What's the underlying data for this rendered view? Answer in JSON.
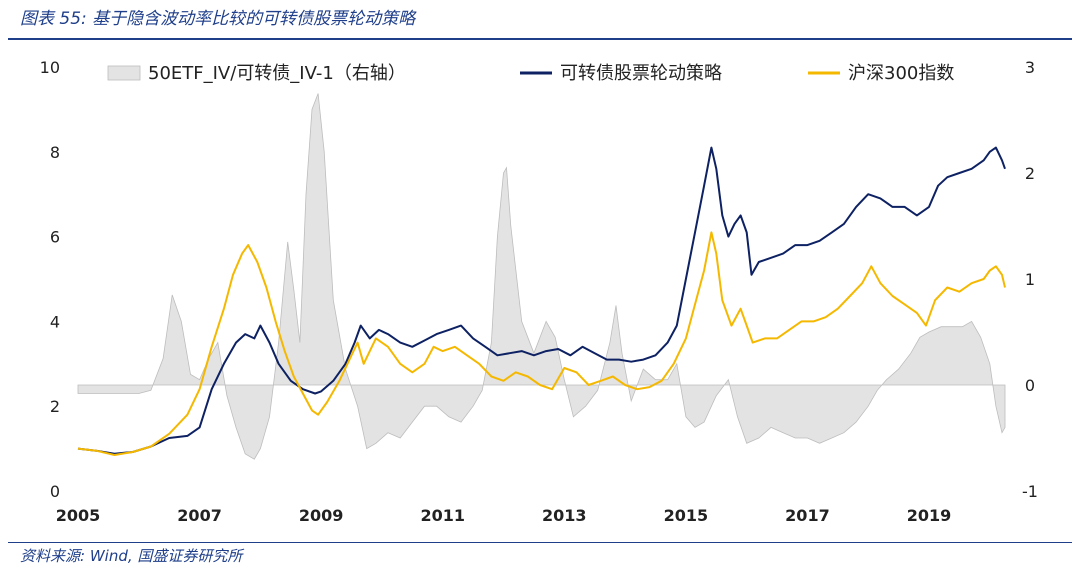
{
  "figure": {
    "title": "图表 55:  基于隐含波动率比较的可转债股票轮动策略",
    "source": "资料来源:  Wind, 国盛证券研究所"
  },
  "colors": {
    "brand": "#1f3f8a",
    "strategy": "#0d2163",
    "hs300": "#f5b800",
    "iv_area_fill": "#e3e3e3",
    "iv_area_stroke": "#bdbdbd"
  },
  "chart_data": {
    "type": "line",
    "x_range": [
      2005.0,
      2020.25
    ],
    "x_ticks": [
      {
        "value": 2005,
        "label": "2005"
      },
      {
        "value": 2007,
        "label": "2007"
      },
      {
        "value": 2009,
        "label": "2009"
      },
      {
        "value": 2011,
        "label": "2011"
      },
      {
        "value": 2013,
        "label": "2013"
      },
      {
        "value": 2015,
        "label": "2015"
      },
      {
        "value": 2017,
        "label": "2017"
      },
      {
        "value": 2019,
        "label": "2019"
      }
    ],
    "y_left": {
      "range": [
        0,
        10
      ],
      "ticks": [
        "0",
        "2",
        "4",
        "6",
        "8",
        "10"
      ]
    },
    "y_right": {
      "range": [
        -1,
        3
      ],
      "ticks": [
        "-1",
        "0",
        "1",
        "2",
        "3"
      ]
    },
    "legend_position": "top",
    "series": [
      {
        "name": "50ETF_IV/可转债_IV-1（右轴）",
        "type": "area",
        "axis": "right",
        "color": "#e3e3e3",
        "points": [
          [
            2005.0,
            -0.08
          ],
          [
            2005.5,
            -0.08
          ],
          [
            2006.0,
            -0.08
          ],
          [
            2006.2,
            -0.05
          ],
          [
            2006.4,
            0.25
          ],
          [
            2006.55,
            0.85
          ],
          [
            2006.7,
            0.6
          ],
          [
            2006.85,
            0.1
          ],
          [
            2007.0,
            0.05
          ],
          [
            2007.15,
            0.25
          ],
          [
            2007.3,
            0.4
          ],
          [
            2007.45,
            -0.1
          ],
          [
            2007.6,
            -0.4
          ],
          [
            2007.75,
            -0.65
          ],
          [
            2007.9,
            -0.7
          ],
          [
            2008.0,
            -0.6
          ],
          [
            2008.15,
            -0.3
          ],
          [
            2008.3,
            0.4
          ],
          [
            2008.45,
            1.35
          ],
          [
            2008.55,
            0.9
          ],
          [
            2008.65,
            0.4
          ],
          [
            2008.75,
            1.8
          ],
          [
            2008.85,
            2.6
          ],
          [
            2008.95,
            2.75
          ],
          [
            2009.05,
            2.2
          ],
          [
            2009.2,
            0.8
          ],
          [
            2009.4,
            0.15
          ],
          [
            2009.6,
            -0.2
          ],
          [
            2009.75,
            -0.6
          ],
          [
            2009.9,
            -0.55
          ],
          [
            2010.1,
            -0.45
          ],
          [
            2010.3,
            -0.5
          ],
          [
            2010.5,
            -0.35
          ],
          [
            2010.7,
            -0.2
          ],
          [
            2010.9,
            -0.2
          ],
          [
            2011.1,
            -0.3
          ],
          [
            2011.3,
            -0.35
          ],
          [
            2011.5,
            -0.2
          ],
          [
            2011.65,
            -0.05
          ],
          [
            2011.8,
            0.4
          ],
          [
            2011.9,
            1.4
          ],
          [
            2012.0,
            2.0
          ],
          [
            2012.05,
            2.05
          ],
          [
            2012.12,
            1.5
          ],
          [
            2012.3,
            0.6
          ],
          [
            2012.5,
            0.3
          ],
          [
            2012.7,
            0.6
          ],
          [
            2012.85,
            0.45
          ],
          [
            2013.0,
            0.05
          ],
          [
            2013.15,
            -0.3
          ],
          [
            2013.35,
            -0.2
          ],
          [
            2013.55,
            -0.05
          ],
          [
            2013.75,
            0.4
          ],
          [
            2013.85,
            0.75
          ],
          [
            2013.95,
            0.3
          ],
          [
            2014.1,
            -0.15
          ],
          [
            2014.3,
            0.15
          ],
          [
            2014.5,
            0.05
          ],
          [
            2014.7,
            0.05
          ],
          [
            2014.85,
            0.2
          ],
          [
            2015.0,
            -0.3
          ],
          [
            2015.15,
            -0.4
          ],
          [
            2015.3,
            -0.35
          ],
          [
            2015.5,
            -0.1
          ],
          [
            2015.7,
            0.05
          ],
          [
            2015.85,
            -0.3
          ],
          [
            2016.0,
            -0.55
          ],
          [
            2016.2,
            -0.5
          ],
          [
            2016.4,
            -0.4
          ],
          [
            2016.6,
            -0.45
          ],
          [
            2016.8,
            -0.5
          ],
          [
            2017.0,
            -0.5
          ],
          [
            2017.2,
            -0.55
          ],
          [
            2017.4,
            -0.5
          ],
          [
            2017.6,
            -0.45
          ],
          [
            2017.8,
            -0.35
          ],
          [
            2018.0,
            -0.2
          ],
          [
            2018.15,
            -0.05
          ],
          [
            2018.3,
            0.05
          ],
          [
            2018.5,
            0.15
          ],
          [
            2018.7,
            0.3
          ],
          [
            2018.85,
            0.45
          ],
          [
            2019.0,
            0.5
          ],
          [
            2019.2,
            0.55
          ],
          [
            2019.4,
            0.55
          ],
          [
            2019.55,
            0.55
          ],
          [
            2019.7,
            0.6
          ],
          [
            2019.85,
            0.45
          ],
          [
            2020.0,
            0.2
          ],
          [
            2020.1,
            -0.2
          ],
          [
            2020.2,
            -0.45
          ],
          [
            2020.25,
            -0.4
          ]
        ]
      },
      {
        "name": "可转债股票轮动策略",
        "type": "line",
        "axis": "left",
        "color": "#0d2163",
        "points": [
          [
            2005.0,
            1.0
          ],
          [
            2005.3,
            0.95
          ],
          [
            2005.6,
            0.88
          ],
          [
            2005.9,
            0.92
          ],
          [
            2006.2,
            1.05
          ],
          [
            2006.5,
            1.25
          ],
          [
            2006.8,
            1.3
          ],
          [
            2007.0,
            1.5
          ],
          [
            2007.2,
            2.4
          ],
          [
            2007.4,
            3.0
          ],
          [
            2007.6,
            3.5
          ],
          [
            2007.75,
            3.7
          ],
          [
            2007.9,
            3.6
          ],
          [
            2008.0,
            3.9
          ],
          [
            2008.15,
            3.5
          ],
          [
            2008.3,
            3.0
          ],
          [
            2008.5,
            2.6
          ],
          [
            2008.7,
            2.4
          ],
          [
            2008.9,
            2.3
          ],
          [
            2009.0,
            2.35
          ],
          [
            2009.2,
            2.6
          ],
          [
            2009.4,
            3.0
          ],
          [
            2009.55,
            3.5
          ],
          [
            2009.65,
            3.9
          ],
          [
            2009.8,
            3.6
          ],
          [
            2009.95,
            3.8
          ],
          [
            2010.1,
            3.7
          ],
          [
            2010.3,
            3.5
          ],
          [
            2010.5,
            3.4
          ],
          [
            2010.7,
            3.55
          ],
          [
            2010.9,
            3.7
          ],
          [
            2011.1,
            3.8
          ],
          [
            2011.3,
            3.9
          ],
          [
            2011.5,
            3.6
          ],
          [
            2011.7,
            3.4
          ],
          [
            2011.9,
            3.2
          ],
          [
            2012.1,
            3.25
          ],
          [
            2012.3,
            3.3
          ],
          [
            2012.5,
            3.2
          ],
          [
            2012.7,
            3.3
          ],
          [
            2012.9,
            3.35
          ],
          [
            2013.1,
            3.2
          ],
          [
            2013.3,
            3.4
          ],
          [
            2013.5,
            3.25
          ],
          [
            2013.7,
            3.1
          ],
          [
            2013.9,
            3.1
          ],
          [
            2014.1,
            3.05
          ],
          [
            2014.3,
            3.1
          ],
          [
            2014.5,
            3.2
          ],
          [
            2014.7,
            3.5
          ],
          [
            2014.85,
            3.9
          ],
          [
            2015.0,
            5.0
          ],
          [
            2015.15,
            6.1
          ],
          [
            2015.3,
            7.2
          ],
          [
            2015.42,
            8.1
          ],
          [
            2015.5,
            7.6
          ],
          [
            2015.6,
            6.5
          ],
          [
            2015.7,
            6.0
          ],
          [
            2015.8,
            6.3
          ],
          [
            2015.9,
            6.5
          ],
          [
            2016.0,
            6.1
          ],
          [
            2016.08,
            5.1
          ],
          [
            2016.2,
            5.4
          ],
          [
            2016.4,
            5.5
          ],
          [
            2016.6,
            5.6
          ],
          [
            2016.8,
            5.8
          ],
          [
            2017.0,
            5.8
          ],
          [
            2017.2,
            5.9
          ],
          [
            2017.4,
            6.1
          ],
          [
            2017.6,
            6.3
          ],
          [
            2017.8,
            6.7
          ],
          [
            2018.0,
            7.0
          ],
          [
            2018.2,
            6.9
          ],
          [
            2018.4,
            6.7
          ],
          [
            2018.6,
            6.7
          ],
          [
            2018.8,
            6.5
          ],
          [
            2019.0,
            6.7
          ],
          [
            2019.15,
            7.2
          ],
          [
            2019.3,
            7.4
          ],
          [
            2019.5,
            7.5
          ],
          [
            2019.7,
            7.6
          ],
          [
            2019.9,
            7.8
          ],
          [
            2020.0,
            8.0
          ],
          [
            2020.1,
            8.1
          ],
          [
            2020.2,
            7.8
          ],
          [
            2020.25,
            7.6
          ]
        ]
      },
      {
        "name": "沪深300指数",
        "type": "line",
        "axis": "left",
        "color": "#f5b800",
        "points": [
          [
            2005.0,
            1.0
          ],
          [
            2005.3,
            0.95
          ],
          [
            2005.6,
            0.85
          ],
          [
            2005.9,
            0.92
          ],
          [
            2006.2,
            1.05
          ],
          [
            2006.5,
            1.35
          ],
          [
            2006.8,
            1.8
          ],
          [
            2007.0,
            2.4
          ],
          [
            2007.2,
            3.4
          ],
          [
            2007.4,
            4.3
          ],
          [
            2007.55,
            5.1
          ],
          [
            2007.7,
            5.6
          ],
          [
            2007.8,
            5.8
          ],
          [
            2007.95,
            5.4
          ],
          [
            2008.1,
            4.8
          ],
          [
            2008.25,
            4.0
          ],
          [
            2008.4,
            3.3
          ],
          [
            2008.55,
            2.7
          ],
          [
            2008.7,
            2.3
          ],
          [
            2008.85,
            1.9
          ],
          [
            2008.95,
            1.8
          ],
          [
            2009.1,
            2.1
          ],
          [
            2009.3,
            2.6
          ],
          [
            2009.5,
            3.2
          ],
          [
            2009.6,
            3.5
          ],
          [
            2009.7,
            3.0
          ],
          [
            2009.8,
            3.3
          ],
          [
            2009.9,
            3.6
          ],
          [
            2010.1,
            3.4
          ],
          [
            2010.3,
            3.0
          ],
          [
            2010.5,
            2.8
          ],
          [
            2010.7,
            3.0
          ],
          [
            2010.85,
            3.4
          ],
          [
            2011.0,
            3.3
          ],
          [
            2011.2,
            3.4
          ],
          [
            2011.4,
            3.2
          ],
          [
            2011.6,
            3.0
          ],
          [
            2011.8,
            2.7
          ],
          [
            2012.0,
            2.6
          ],
          [
            2012.2,
            2.8
          ],
          [
            2012.4,
            2.7
          ],
          [
            2012.6,
            2.5
          ],
          [
            2012.8,
            2.4
          ],
          [
            2013.0,
            2.9
          ],
          [
            2013.2,
            2.8
          ],
          [
            2013.4,
            2.5
          ],
          [
            2013.6,
            2.6
          ],
          [
            2013.8,
            2.7
          ],
          [
            2014.0,
            2.5
          ],
          [
            2014.2,
            2.4
          ],
          [
            2014.4,
            2.45
          ],
          [
            2014.6,
            2.6
          ],
          [
            2014.8,
            3.0
          ],
          [
            2015.0,
            3.6
          ],
          [
            2015.15,
            4.4
          ],
          [
            2015.3,
            5.2
          ],
          [
            2015.42,
            6.1
          ],
          [
            2015.5,
            5.6
          ],
          [
            2015.6,
            4.5
          ],
          [
            2015.75,
            3.9
          ],
          [
            2015.9,
            4.3
          ],
          [
            2016.0,
            3.9
          ],
          [
            2016.1,
            3.5
          ],
          [
            2016.3,
            3.6
          ],
          [
            2016.5,
            3.6
          ],
          [
            2016.7,
            3.8
          ],
          [
            2016.9,
            4.0
          ],
          [
            2017.1,
            4.0
          ],
          [
            2017.3,
            4.1
          ],
          [
            2017.5,
            4.3
          ],
          [
            2017.7,
            4.6
          ],
          [
            2017.9,
            4.9
          ],
          [
            2018.05,
            5.3
          ],
          [
            2018.2,
            4.9
          ],
          [
            2018.4,
            4.6
          ],
          [
            2018.6,
            4.4
          ],
          [
            2018.8,
            4.2
          ],
          [
            2018.95,
            3.9
          ],
          [
            2019.1,
            4.5
          ],
          [
            2019.3,
            4.8
          ],
          [
            2019.5,
            4.7
          ],
          [
            2019.7,
            4.9
          ],
          [
            2019.9,
            5.0
          ],
          [
            2020.0,
            5.2
          ],
          [
            2020.1,
            5.3
          ],
          [
            2020.2,
            5.1
          ],
          [
            2020.25,
            4.8
          ]
        ]
      }
    ]
  }
}
